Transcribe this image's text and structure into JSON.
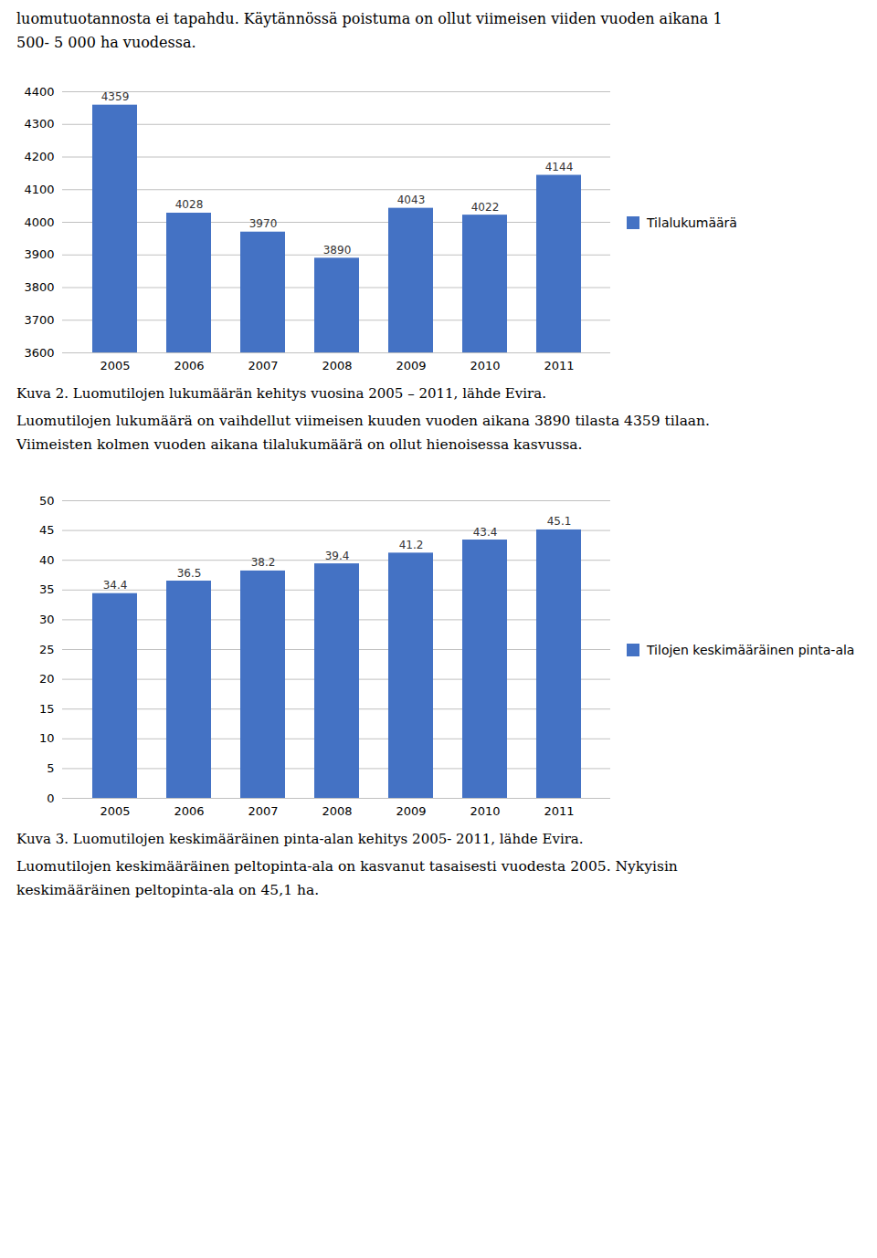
{
  "page_text": [
    "luomutuotannosta ei tapahdu. Käytännössä poistuma on ollut viimeisen viiden vuoden aikana 1",
    "500- 5 000 ha vuodessa."
  ],
  "chart_data": [
    {
      "type": "bar",
      "title": "Kuva 2. Luomutilojen lukumäärän kehitys vuosina 2005 – 2011, lähde Evira.",
      "annotations": [
        "Luomutilojen lukumäärä on vaihdellut viimeisen kuuden vuoden aikana 3890 tilasta 4359 tilaan.",
        "Viimeisten kolmen vuoden aikana tilalukumäärä on ollut hienoisessa kasvussa."
      ],
      "categories": [
        "2005",
        "2006",
        "2007",
        "2008",
        "2009",
        "2010",
        "2011"
      ],
      "series": [
        {
          "name": "Tilalukumäärä",
          "color": "#4472C4",
          "values": [
            4359,
            4028,
            3970,
            3890,
            4043,
            4022,
            4144
          ]
        }
      ],
      "ylim": [
        3600,
        4400
      ],
      "yticks": [
        3600,
        3700,
        3800,
        3900,
        4000,
        4100,
        4200,
        4300,
        4400
      ],
      "grid": true,
      "legend": "right",
      "data_labels": true
    },
    {
      "type": "bar",
      "title": "Kuva 3. Luomutilojen keskimääräinen pinta-alan kehitys 2005- 2011, lähde Evira.",
      "annotations": [
        "Luomutilojen keskimääräinen peltopinta-ala on kasvanut tasaisesti vuodesta 2005. Nykyisin",
        "keskimääräinen peltopinta-ala on 45,1 ha."
      ],
      "categories": [
        "2005",
        "2006",
        "2007",
        "2008",
        "2009",
        "2010",
        "2011"
      ],
      "series": [
        {
          "name": "Tilojen keskimääräinen pinta-ala",
          "color": "#4472C4",
          "values": [
            34.4,
            36.5,
            38.2,
            39.4,
            41.2,
            43.4,
            45.1
          ]
        }
      ],
      "ylim": [
        0,
        50
      ],
      "yticks": [
        0,
        5,
        10,
        15,
        20,
        25,
        30,
        35,
        40,
        45,
        50
      ],
      "grid": true,
      "legend": "right",
      "data_labels": true
    }
  ]
}
